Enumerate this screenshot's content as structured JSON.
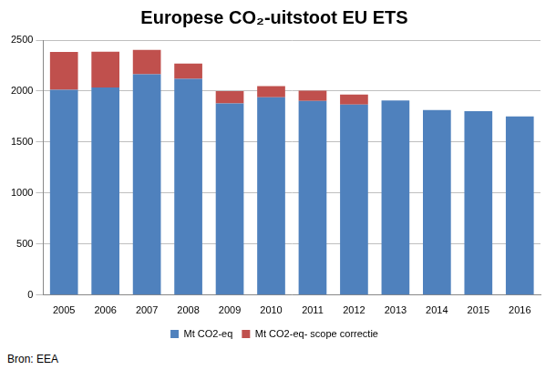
{
  "chart_data": {
    "type": "bar",
    "title": "Europese CO₂-uitstoot EU ETS",
    "annotations": [
      "Bron: EEA"
    ],
    "categories": [
      "2005",
      "2006",
      "2007",
      "2008",
      "2009",
      "2010",
      "2011",
      "2012",
      "2013",
      "2014",
      "2015",
      "2016"
    ],
    "series": [
      {
        "name": "Mt CO2-eq",
        "color": "#4f81bd",
        "values": [
          2014,
          2036,
          2164,
          2120,
          1880,
          1939,
          1904,
          1867,
          1908,
          1814,
          1803,
          1751
        ]
      },
      {
        "name": "Mt CO2-eq- scope correctie",
        "color": "#c0504d",
        "values": [
          370,
          350,
          240,
          150,
          120,
          110,
          100,
          100,
          null,
          null,
          null,
          null
        ]
      }
    ],
    "ylim": [
      0,
      2500
    ],
    "yticks": [
      0,
      500,
      1000,
      1500,
      2000,
      2500
    ],
    "stacked": true,
    "grid": true,
    "legend": "bottom"
  }
}
